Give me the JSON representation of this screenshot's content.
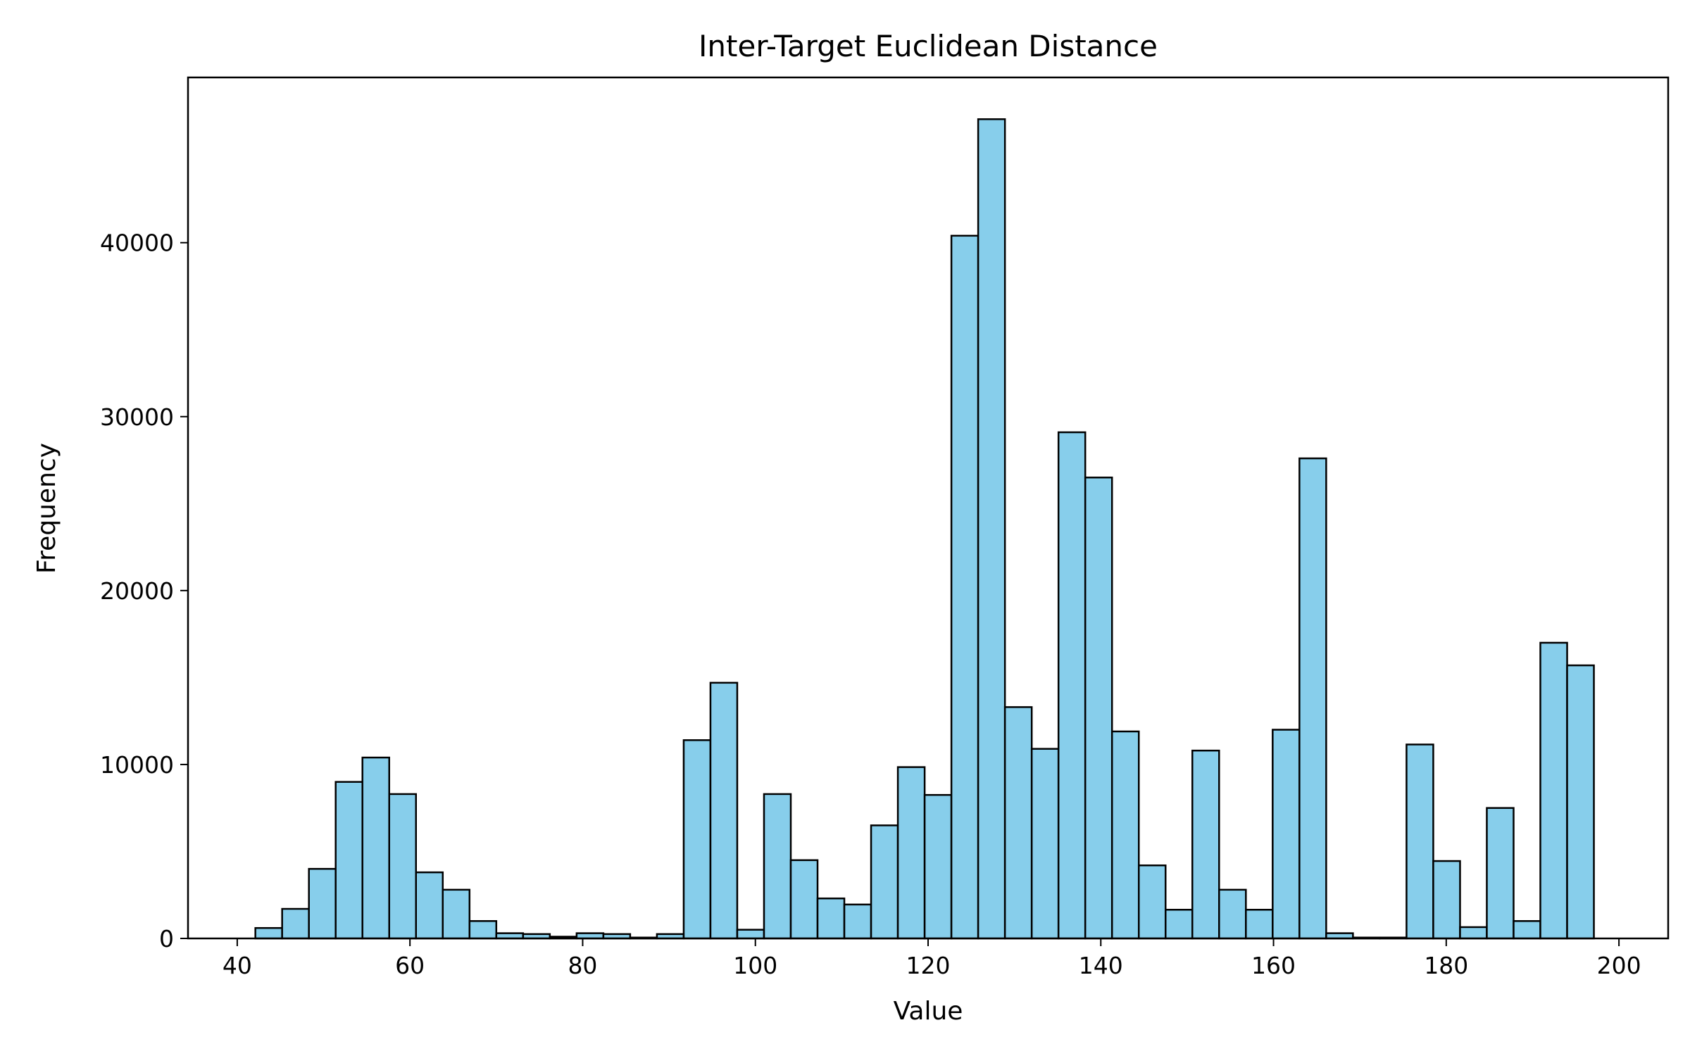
{
  "chart_data": {
    "type": "histogram",
    "title": "Inter-Target Euclidean Distance",
    "xlabel": "Value",
    "ylabel": "Frequency",
    "xlim": [
      34.3,
      205.7
    ],
    "ylim": [
      0,
      49500
    ],
    "xticks": [
      40,
      60,
      80,
      100,
      120,
      140,
      160,
      180,
      200
    ],
    "yticks": [
      0,
      10000,
      20000,
      30000,
      40000
    ],
    "grid": false,
    "bar_color": "#87CEEB",
    "edge_color": "#000000",
    "bin_start": 42.1,
    "bin_width": 3.1,
    "values": [
      600,
      1700,
      4000,
      9000,
      10400,
      8300,
      3800,
      2800,
      1000,
      300,
      250,
      100,
      300,
      250,
      50,
      250,
      11400,
      14700,
      500,
      8300,
      4500,
      2300,
      1950,
      6500,
      9850,
      8250,
      40400,
      47100,
      13300,
      10900,
      29100,
      26500,
      11900,
      4200,
      1650,
      10800,
      2800,
      1650,
      12000,
      27600,
      300,
      50,
      50,
      11150,
      4450,
      650,
      7500,
      1000,
      17000,
      15700
    ]
  }
}
